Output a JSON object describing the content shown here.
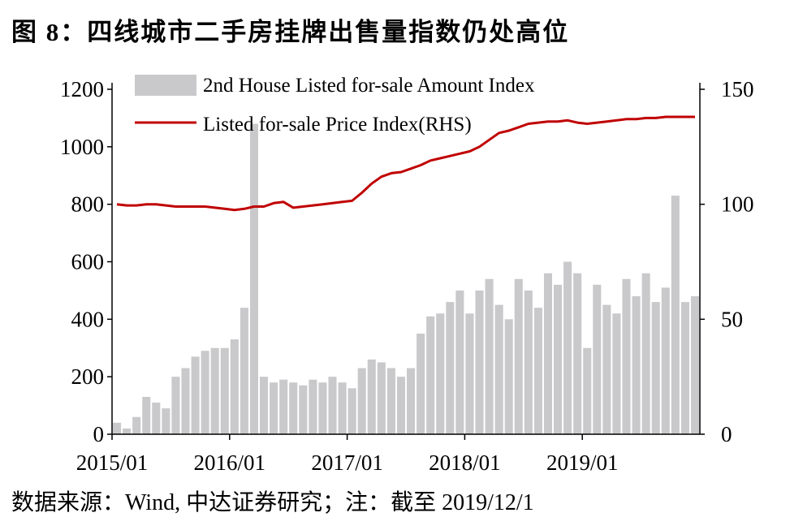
{
  "title": "图 8：四线城市二手房挂牌出售量指数仍处高位",
  "source": "数据来源：Wind, 中达证券研究；注：截至 2019/12/1",
  "colors": {
    "bars": "#c9c9cb",
    "line": "#c00000",
    "axis": "#000000"
  },
  "chart_data": {
    "type": "bar+line",
    "legend_placement": "top-left",
    "grid": false,
    "x_ticks": [
      "2015/01",
      "2016/01",
      "2017/01",
      "2018/01",
      "2019/01"
    ],
    "x_range": [
      "2015/01",
      "2019/12"
    ],
    "y_left": {
      "ticks": [
        "0",
        "200",
        "400",
        "600",
        "800",
        "1000",
        "1200"
      ],
      "range": [
        0,
        1200
      ]
    },
    "y_right": {
      "ticks": [
        "0",
        "50",
        "100",
        "150"
      ],
      "range": [
        0,
        150
      ]
    },
    "series": [
      {
        "name": "2nd House Listed for-sale Amount Index",
        "type": "bar",
        "axis": "left",
        "x": [
          "2015/01",
          "2015/02",
          "2015/03",
          "2015/04",
          "2015/05",
          "2015/06",
          "2015/07",
          "2015/08",
          "2015/09",
          "2015/10",
          "2015/11",
          "2015/12",
          "2016/01",
          "2016/02",
          "2016/03",
          "2016/04",
          "2016/05",
          "2016/06",
          "2016/07",
          "2016/08",
          "2016/09",
          "2016/10",
          "2016/11",
          "2016/12",
          "2017/01",
          "2017/02",
          "2017/03",
          "2017/04",
          "2017/05",
          "2017/06",
          "2017/07",
          "2017/08",
          "2017/09",
          "2017/10",
          "2017/11",
          "2017/12",
          "2018/01",
          "2018/02",
          "2018/03",
          "2018/04",
          "2018/05",
          "2018/06",
          "2018/07",
          "2018/08",
          "2018/09",
          "2018/10",
          "2018/11",
          "2018/12",
          "2019/01",
          "2019/02",
          "2019/03",
          "2019/04",
          "2019/05",
          "2019/06",
          "2019/07",
          "2019/08",
          "2019/09",
          "2019/10",
          "2019/11",
          "2019/12"
        ],
        "values": [
          40,
          20,
          60,
          130,
          110,
          90,
          200,
          230,
          270,
          290,
          300,
          300,
          330,
          440,
          1080,
          200,
          180,
          190,
          180,
          170,
          190,
          180,
          200,
          180,
          160,
          230,
          260,
          250,
          230,
          200,
          230,
          350,
          410,
          420,
          460,
          500,
          420,
          500,
          540,
          450,
          400,
          540,
          500,
          440,
          560,
          520,
          600,
          560,
          300,
          520,
          450,
          420,
          540,
          480,
          560,
          460,
          510,
          830,
          460,
          480
        ]
      },
      {
        "name": "Listed for-sale Price Index(RHS)",
        "type": "line",
        "axis": "right",
        "x": [
          "2015/01",
          "2015/02",
          "2015/03",
          "2015/04",
          "2015/05",
          "2015/06",
          "2015/07",
          "2015/08",
          "2015/09",
          "2015/10",
          "2015/11",
          "2015/12",
          "2016/01",
          "2016/02",
          "2016/03",
          "2016/04",
          "2016/05",
          "2016/06",
          "2016/07",
          "2016/08",
          "2016/09",
          "2016/10",
          "2016/11",
          "2016/12",
          "2017/01",
          "2017/02",
          "2017/03",
          "2017/04",
          "2017/05",
          "2017/06",
          "2017/07",
          "2017/08",
          "2017/09",
          "2017/10",
          "2017/11",
          "2017/12",
          "2018/01",
          "2018/02",
          "2018/03",
          "2018/04",
          "2018/05",
          "2018/06",
          "2018/07",
          "2018/08",
          "2018/09",
          "2018/10",
          "2018/11",
          "2018/12",
          "2019/01",
          "2019/02",
          "2019/03",
          "2019/04",
          "2019/05",
          "2019/06",
          "2019/07",
          "2019/08",
          "2019/09",
          "2019/10",
          "2019/11",
          "2019/12"
        ],
        "values": [
          100,
          99.5,
          99.5,
          100,
          100,
          99.5,
          99,
          99,
          99,
          99,
          98.5,
          98,
          97.5,
          98,
          99,
          99,
          100.5,
          101,
          98.5,
          99,
          99.5,
          100,
          100.5,
          101,
          101.5,
          105,
          109,
          112,
          113.5,
          114,
          115.5,
          117,
          119,
          120,
          121,
          122,
          123,
          125,
          128,
          131,
          132,
          133.5,
          135,
          135.5,
          136,
          136,
          136.5,
          135.5,
          135,
          135.5,
          136,
          136.5,
          137,
          137,
          137.5,
          137.5,
          138,
          138,
          138,
          138
        ]
      }
    ]
  }
}
